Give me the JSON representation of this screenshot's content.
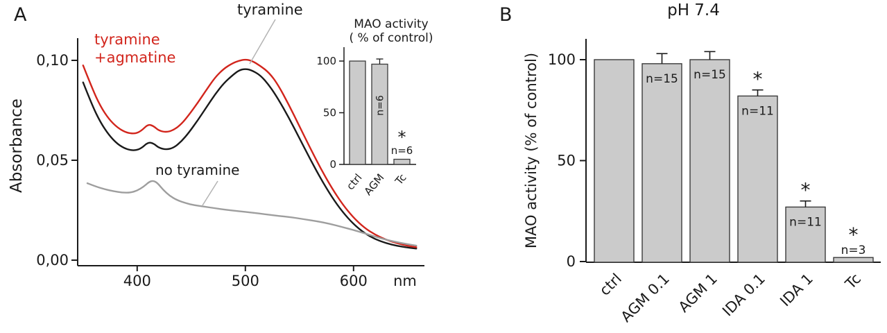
{
  "panels": {
    "a_label": "A",
    "b_label": "B"
  },
  "chart_data": [
    {
      "id": "absorbance-spectrum",
      "panel": "A",
      "type": "line",
      "xlabel": "nm",
      "ylabel": "Absorbance",
      "xlim": [
        345,
        665
      ],
      "ylim": [
        0,
        0.115
      ],
      "xticks": [
        400,
        500,
        600
      ],
      "yticks": [
        {
          "value": 0,
          "label": "0,00"
        },
        {
          "value": 0.05,
          "label": "0,05"
        },
        {
          "value": 0.1,
          "label": "0,10"
        }
      ],
      "grid": false,
      "series": [
        {
          "id": "tyramine",
          "name": "tyramine",
          "color": "#1a1a1a",
          "points": [
            [
              350,
              0.089
            ],
            [
              358,
              0.078
            ],
            [
              366,
              0.069
            ],
            [
              374,
              0.0625
            ],
            [
              382,
              0.058
            ],
            [
              390,
              0.0555
            ],
            [
              398,
              0.0548
            ],
            [
              404,
              0.056
            ],
            [
              410,
              0.059
            ],
            [
              415,
              0.0585
            ],
            [
              420,
              0.0562
            ],
            [
              427,
              0.0553
            ],
            [
              434,
              0.0563
            ],
            [
              441,
              0.0595
            ],
            [
              448,
              0.064
            ],
            [
              456,
              0.07
            ],
            [
              464,
              0.0765
            ],
            [
              472,
              0.083
            ],
            [
              480,
              0.0885
            ],
            [
              488,
              0.0925
            ],
            [
              494,
              0.095
            ],
            [
              500,
              0.0958
            ],
            [
              506,
              0.095
            ],
            [
              514,
              0.0925
            ],
            [
              522,
              0.0875
            ],
            [
              530,
              0.081
            ],
            [
              540,
              0.0715
            ],
            [
              550,
              0.061
            ],
            [
              560,
              0.0505
            ],
            [
              570,
              0.0405
            ],
            [
              580,
              0.0315
            ],
            [
              590,
              0.024
            ],
            [
              600,
              0.018
            ],
            [
              610,
              0.0135
            ],
            [
              620,
              0.0105
            ],
            [
              630,
              0.0085
            ],
            [
              640,
              0.0072
            ],
            [
              650,
              0.0063
            ],
            [
              658,
              0.0058
            ]
          ]
        },
        {
          "id": "tyramine-agmatine",
          "name": "tyramine +agmatine",
          "color": "#d2251c",
          "points": [
            [
              350,
              0.0975
            ],
            [
              358,
              0.0865
            ],
            [
              366,
              0.077
            ],
            [
              374,
              0.0705
            ],
            [
              382,
              0.0662
            ],
            [
              390,
              0.0638
            ],
            [
              398,
              0.0632
            ],
            [
              404,
              0.0648
            ],
            [
              410,
              0.068
            ],
            [
              415,
              0.0672
            ],
            [
              420,
              0.0648
            ],
            [
              427,
              0.064
            ],
            [
              434,
              0.0652
            ],
            [
              441,
              0.0682
            ],
            [
              448,
              0.0728
            ],
            [
              456,
              0.0788
            ],
            [
              464,
              0.0852
            ],
            [
              472,
              0.0915
            ],
            [
              480,
              0.0958
            ],
            [
              488,
              0.0985
            ],
            [
              494,
              0.0998
            ],
            [
              500,
              0.1005
            ],
            [
              506,
              0.0998
            ],
            [
              514,
              0.0972
            ],
            [
              522,
              0.0938
            ],
            [
              530,
              0.088
            ],
            [
              540,
              0.078
            ],
            [
              550,
              0.067
            ],
            [
              560,
              0.056
            ],
            [
              570,
              0.0455
            ],
            [
              580,
              0.036
            ],
            [
              590,
              0.0278
            ],
            [
              600,
              0.0212
            ],
            [
              610,
              0.0162
            ],
            [
              620,
              0.0127
            ],
            [
              630,
              0.0102
            ],
            [
              640,
              0.0085
            ],
            [
              650,
              0.0072
            ],
            [
              658,
              0.0065
            ]
          ]
        },
        {
          "id": "no-tyramine",
          "name": "no tyramine",
          "color": "#9e9e9e",
          "points": [
            [
              354,
              0.0385
            ],
            [
              362,
              0.0368
            ],
            [
              370,
              0.0355
            ],
            [
              378,
              0.0345
            ],
            [
              386,
              0.0338
            ],
            [
              394,
              0.0338
            ],
            [
              400,
              0.0348
            ],
            [
              406,
              0.0368
            ],
            [
              411,
              0.0392
            ],
            [
              415,
              0.0398
            ],
            [
              419,
              0.0385
            ],
            [
              424,
              0.0352
            ],
            [
              430,
              0.0322
            ],
            [
              437,
              0.03
            ],
            [
              445,
              0.0285
            ],
            [
              453,
              0.0275
            ],
            [
              462,
              0.0268
            ],
            [
              472,
              0.026
            ],
            [
              482,
              0.0252
            ],
            [
              494,
              0.0245
            ],
            [
              506,
              0.0238
            ],
            [
              518,
              0.023
            ],
            [
              530,
              0.0222
            ],
            [
              542,
              0.0215
            ],
            [
              554,
              0.0205
            ],
            [
              566,
              0.0195
            ],
            [
              578,
              0.0182
            ],
            [
              590,
              0.0165
            ],
            [
              602,
              0.0148
            ],
            [
              614,
              0.0128
            ],
            [
              626,
              0.0108
            ],
            [
              638,
              0.0092
            ],
            [
              650,
              0.008
            ],
            [
              658,
              0.0073
            ]
          ]
        }
      ],
      "annotations": [
        {
          "text": "tyramine",
          "color": "#1a1a1a"
        },
        {
          "lines": [
            "tyramine",
            "+agmatine"
          ],
          "color": "#d2251c"
        },
        {
          "text": "no tyramine",
          "color": "#1a1a1a"
        }
      ]
    },
    {
      "id": "mao-activity-inset",
      "panel": "A",
      "type": "bar",
      "title_lines": [
        "MAO activity",
        "( % of control)"
      ],
      "categories": [
        "ctrl",
        "AGM",
        "Tc"
      ],
      "values": [
        100,
        97,
        5
      ],
      "errors": [
        null,
        5,
        null
      ],
      "stars": [
        false,
        false,
        true
      ],
      "n_labels": [
        null,
        "n=6",
        "n=6"
      ],
      "n_placement": [
        null,
        "inside-vertical",
        "above"
      ],
      "yticks": [
        0,
        50,
        100
      ],
      "ylim": [
        0,
        113
      ],
      "bar_color": "#cbcbcb"
    },
    {
      "id": "mao-activity-ph74",
      "panel": "B",
      "type": "bar",
      "title": "pH 7.4",
      "ylabel": "MAO activity (% of control)",
      "categories": [
        "ctrl",
        "AGM 0.1",
        "AGM 1",
        "IDA 0.1",
        "IDA 1",
        "Tc"
      ],
      "values": [
        100,
        98,
        100,
        82,
        27,
        2
      ],
      "errors": [
        null,
        5,
        4,
        3,
        3,
        null
      ],
      "stars": [
        false,
        false,
        false,
        true,
        true,
        true
      ],
      "n_labels": [
        null,
        "n=15",
        "n=15",
        "n=11",
        "n=11",
        "n=3"
      ],
      "n_placement": [
        null,
        "inside",
        "inside",
        "inside",
        "inside",
        "above"
      ],
      "yticks": [
        0,
        50,
        100
      ],
      "ylim": [
        0,
        110
      ],
      "bar_color": "#cbcbcb"
    }
  ]
}
